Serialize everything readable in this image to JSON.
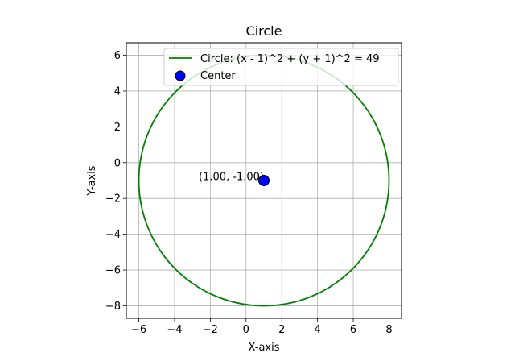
{
  "chart_data": {
    "type": "line",
    "title": "Circle",
    "xlabel": "X-axis",
    "ylabel": "Y-axis",
    "xlim": [
      -6.7,
      8.7
    ],
    "ylim": [
      -8.7,
      6.7
    ],
    "xticks": [
      -6,
      -4,
      -2,
      0,
      2,
      4,
      6,
      8
    ],
    "yticks": [
      -8,
      -6,
      -4,
      -2,
      0,
      2,
      4,
      6
    ],
    "xtick_labels": [
      "−6",
      "−4",
      "−2",
      "0",
      "2",
      "4",
      "6",
      "8"
    ],
    "ytick_labels": [
      "−8",
      "−6",
      "−4",
      "−2",
      "0",
      "2",
      "4",
      "6"
    ],
    "grid": true,
    "legend_position": "top-right",
    "series": [
      {
        "name": "Circle: (x - 1)^2 + (y + 1)^2 = 49",
        "kind": "circle",
        "center": [
          1,
          -1
        ],
        "radius": 7,
        "color": "#008000"
      },
      {
        "name": "Center",
        "kind": "point",
        "x": 1,
        "y": -1,
        "color": "#0000ff",
        "edgecolor": "#000000"
      }
    ],
    "annotations": [
      {
        "text": "(1.00, -1.00)",
        "x": 1,
        "y": -1
      }
    ]
  }
}
